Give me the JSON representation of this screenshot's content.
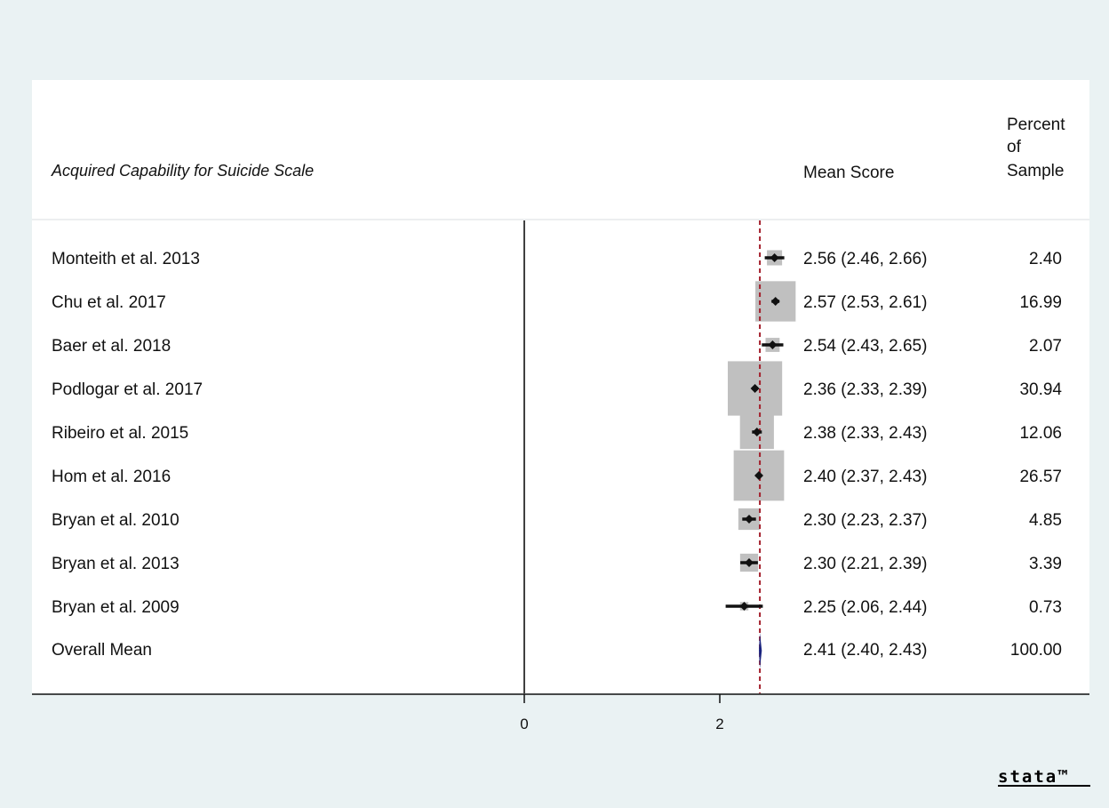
{
  "chart_data": {
    "type": "forest",
    "title": "Acquired Capability for Suicide Scale",
    "columns": {
      "estimate_header": "Mean Score",
      "weight_header_lines": [
        "Percent",
        "of",
        "Sample"
      ]
    },
    "x_ticks": [
      {
        "value": 0,
        "label": "0"
      },
      {
        "value": 2,
        "label": "2"
      }
    ],
    "reference_line": 0,
    "overall_line": 2.41,
    "studies": [
      {
        "label": "Monteith et al. 2013",
        "mean": 2.56,
        "lo": 2.46,
        "hi": 2.66,
        "ci_text": "2.56 (2.46, 2.66)",
        "weight": 2.4,
        "weight_text": "2.40"
      },
      {
        "label": "Chu et al. 2017",
        "mean": 2.57,
        "lo": 2.53,
        "hi": 2.61,
        "ci_text": "2.57 (2.53, 2.61)",
        "weight": 16.99,
        "weight_text": "16.99"
      },
      {
        "label": "Baer et al. 2018",
        "mean": 2.54,
        "lo": 2.43,
        "hi": 2.65,
        "ci_text": "2.54 (2.43, 2.65)",
        "weight": 2.07,
        "weight_text": "2.07"
      },
      {
        "label": "Podlogar et al. 2017",
        "mean": 2.36,
        "lo": 2.33,
        "hi": 2.39,
        "ci_text": "2.36 (2.33, 2.39)",
        "weight": 30.94,
        "weight_text": "30.94"
      },
      {
        "label": "Ribeiro et al. 2015",
        "mean": 2.38,
        "lo": 2.33,
        "hi": 2.43,
        "ci_text": "2.38 (2.33, 2.43)",
        "weight": 12.06,
        "weight_text": "12.06"
      },
      {
        "label": "Hom et al. 2016",
        "mean": 2.4,
        "lo": 2.37,
        "hi": 2.43,
        "ci_text": "2.40 (2.37, 2.43)",
        "weight": 26.57,
        "weight_text": "26.57"
      },
      {
        "label": "Bryan et al. 2010",
        "mean": 2.3,
        "lo": 2.23,
        "hi": 2.37,
        "ci_text": "2.30 (2.23, 2.37)",
        "weight": 4.85,
        "weight_text": "4.85"
      },
      {
        "label": "Bryan et al. 2013",
        "mean": 2.3,
        "lo": 2.21,
        "hi": 2.39,
        "ci_text": "2.30 (2.21, 2.39)",
        "weight": 3.39,
        "weight_text": "3.39"
      },
      {
        "label": "Bryan et al. 2009",
        "mean": 2.25,
        "lo": 2.06,
        "hi": 2.44,
        "ci_text": "2.25 (2.06, 2.44)",
        "weight": 0.73,
        "weight_text": "0.73"
      }
    ],
    "overall": {
      "label": "Overall Mean",
      "mean": 2.41,
      "lo": 2.4,
      "hi": 2.43,
      "ci_text": "2.41 (2.40, 2.43)",
      "weight_text": "100.00"
    },
    "colors": {
      "outer_background": "#eaf2f3",
      "plot_background": "#ffffff",
      "weight_box": "#c0c0c0",
      "point": "#111111",
      "overall_diamond": "#1a237e",
      "overall_line": "#a31f2b"
    }
  },
  "branding": {
    "logo_text": "stata™"
  }
}
